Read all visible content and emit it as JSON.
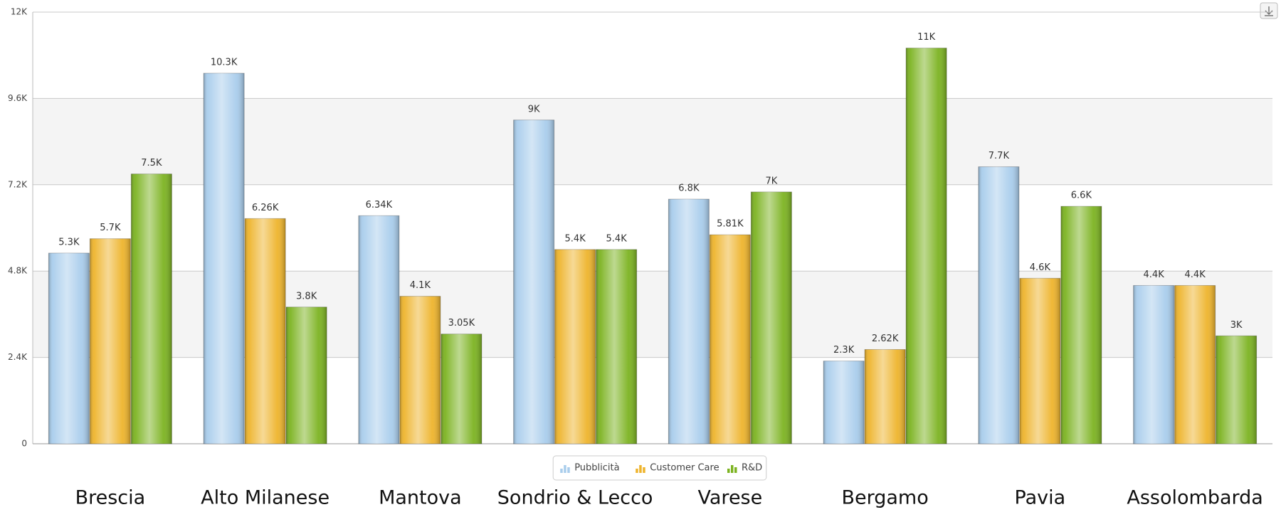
{
  "chart_data": {
    "type": "bar",
    "categories": [
      "Brescia",
      "Alto Milanese",
      "Mantova",
      "Sondrio & Lecco",
      "Varese",
      "Bergamo",
      "Pavia",
      "Assolombarda"
    ],
    "series": [
      {
        "name": "Pubblicità",
        "color": "#a9cdec",
        "values": [
          5300,
          10300,
          6340,
          9000,
          6800,
          2300,
          7700,
          4400
        ],
        "value_labels": [
          "5.3K",
          "10.3K",
          "6.34K",
          "9K",
          "6.8K",
          "2.3K",
          "7.7K",
          "4.4K"
        ]
      },
      {
        "name": "Customer Care",
        "color": "#eeb42c",
        "values": [
          5700,
          6260,
          4100,
          5400,
          5810,
          2620,
          4600,
          4400
        ],
        "value_labels": [
          "5.7K",
          "6.26K",
          "4.1K",
          "5.4K",
          "5.81K",
          "2.62K",
          "4.6K",
          "4.4K"
        ]
      },
      {
        "name": "R&D",
        "color": "#7cb321",
        "values": [
          7500,
          3800,
          3050,
          5400,
          7000,
          11000,
          6600,
          3000
        ],
        "value_labels": [
          "7.5K",
          "3.8K",
          "3.05K",
          "5.4K",
          "7K",
          "11K",
          "6.6K",
          "3K"
        ]
      }
    ],
    "ylim": [
      0,
      12000
    ],
    "yticks": [
      0,
      {
        "value": 2400,
        "label": "2.4K"
      },
      {
        "value": 4800,
        "label": "4.8K"
      },
      {
        "value": 7200,
        "label": "7.2K"
      },
      {
        "value": 9600,
        "label": "9.6K"
      },
      {
        "value": 12000,
        "label": "12K"
      }
    ],
    "grid": true,
    "legend": "bottom"
  }
}
